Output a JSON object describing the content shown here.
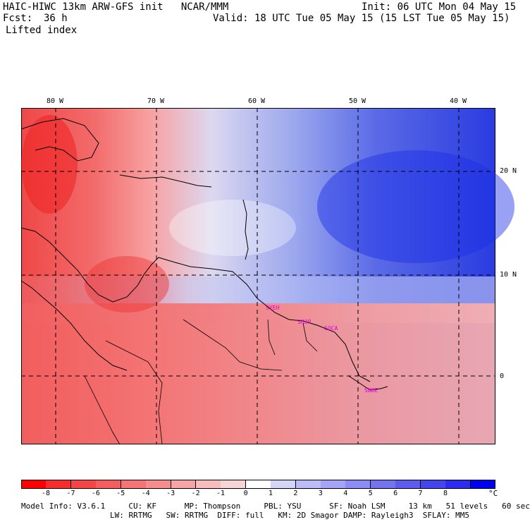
{
  "header": {
    "title": "HAIC-HIWC 13km ARW-GFS init   NCAR/MMM",
    "init": "Init: 06 UTC Mon 04 May 15",
    "fcst_label": "Fcst:",
    "fcst_value": "36 h",
    "valid": "Valid: 18 UTC Tue 05 May 15 (15 LST Tue 05 May 15)",
    "field": "Lifted index"
  },
  "map": {
    "lon_labels": [
      "80 W",
      "70 W",
      "60 W",
      "50 W",
      "40 W"
    ],
    "lat_labels": [
      "20 N",
      "10 N",
      "0"
    ],
    "stations": [
      "SYEH",
      "SMJP",
      "SOCA",
      "SBBE"
    ]
  },
  "colorbar": {
    "colors": [
      "#ff0000",
      "#f82c2c",
      "#f84444",
      "#f85c5c",
      "#f87474",
      "#f88c8c",
      "#f8a4a4",
      "#f8bcbc",
      "#f8d4d4",
      "#ffffff",
      "#d4d4f8",
      "#bcbcf8",
      "#a4a4f8",
      "#8c8cf8",
      "#7474f0",
      "#5c5cf0",
      "#4444f0",
      "#2c2cf0",
      "#0000f0"
    ],
    "ticks": [
      "-8",
      "-7",
      "-6",
      "-5",
      "-4",
      "-3",
      "-2",
      "-1",
      "0",
      "1",
      "2",
      "3",
      "4",
      "5",
      "6",
      "7",
      "8"
    ],
    "unit": "°C"
  },
  "footer": {
    "line1": "Model Info: V3.6.1     CU: KF      MP: Thompson     PBL: YSU      SF: Noah LSM     13 km   51 levels   60 sec",
    "line2": "LW: RRTMG   SW: RRTMG  DIFF: full   KM: 2D Smagor DAMP: Rayleigh3  SFLAY: MM5"
  }
}
